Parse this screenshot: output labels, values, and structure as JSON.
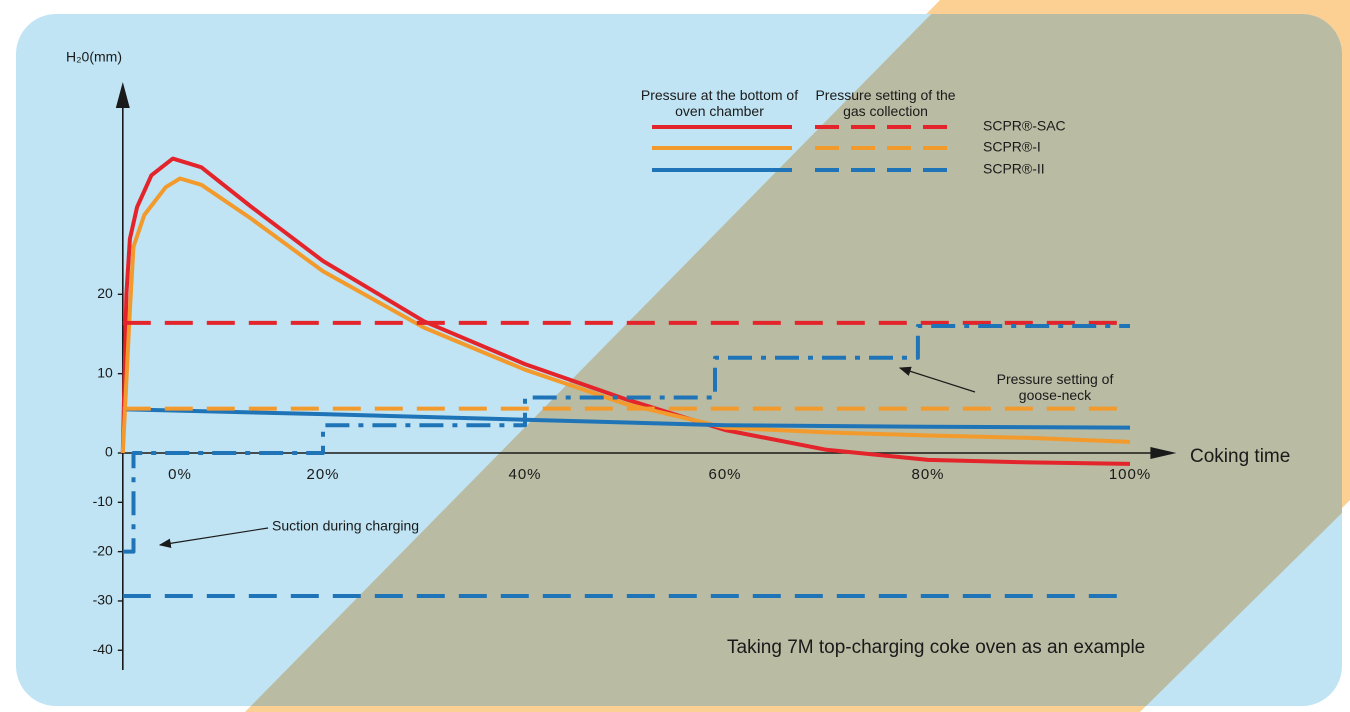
{
  "chart_data": {
    "type": "line",
    "y_label": "H₂0(mm)",
    "x_label": "Coking time",
    "xlim": [
      -8,
      104
    ],
    "xticks": [
      {
        "value": 0,
        "label": "0%"
      },
      {
        "value": 20,
        "label": "20%"
      },
      {
        "value": 40,
        "label": "40%"
      },
      {
        "value": 60,
        "label": "60%"
      },
      {
        "value": 80,
        "label": "80%"
      },
      {
        "value": 100,
        "label": "100%"
      }
    ],
    "ylim": [
      -44,
      46
    ],
    "yticks": [
      -40,
      -30,
      -20,
      -10,
      0,
      10,
      20
    ],
    "legend": {
      "columns": [
        "Pressure at the bottom of oven chamber",
        "Pressure setting of the gas collection"
      ],
      "rows": [
        "SCPR®-SAC",
        "SCPR®-I",
        "SCPR®-II"
      ]
    },
    "series": [
      {
        "color": "#e3242b",
        "style": "solid",
        "x": [
          -8,
          -7.5,
          -7,
          -6,
          -4,
          -1,
          3,
          10,
          20,
          30,
          40,
          50,
          60,
          70,
          80,
          90,
          100
        ],
        "values": [
          0,
          20,
          27,
          31,
          35,
          37.1,
          36,
          31,
          24.2,
          16.6,
          11.2,
          6.8,
          2.9,
          0.4,
          -1.4,
          -1.9,
          -2.2
        ]
      },
      {
        "color": "#f39a2c",
        "style": "solid",
        "x": [
          -8,
          -7,
          -6.5,
          -5,
          -2,
          0,
          3,
          10,
          20,
          30,
          40,
          50,
          60,
          70,
          80,
          90,
          100
        ],
        "values": [
          0,
          18,
          26,
          30,
          33.5,
          34.6,
          33.8,
          29.5,
          22.9,
          15.8,
          10.5,
          6.2,
          3.2,
          2.6,
          2.2,
          1.9,
          1.4
        ]
      },
      {
        "color": "#1f74b7",
        "style": "solid",
        "x": [
          -7.5,
          20,
          40,
          60,
          80,
          100
        ],
        "values": [
          5.5,
          4.9,
          4.2,
          3.5,
          3.3,
          3.2
        ]
      },
      {
        "color": "#e3242b",
        "style": "dashed",
        "x": [
          -8,
          100
        ],
        "values": [
          16.4,
          16.4
        ]
      },
      {
        "color": "#f39a2c",
        "style": "dashed",
        "x": [
          -8,
          100
        ],
        "values": [
          5.6,
          5.6
        ]
      },
      {
        "color": "#1f74b7",
        "style": "dashed",
        "x": [
          -8,
          100
        ],
        "values": [
          -29,
          -29
        ]
      },
      {
        "color": "#1f74b7",
        "style": "dashdot",
        "x": [
          -8,
          -6.5,
          -6.5,
          20,
          20,
          40,
          40,
          59,
          59,
          79,
          79,
          100
        ],
        "values": [
          -20,
          -20,
          0,
          0,
          3.5,
          3.5,
          7,
          7,
          12,
          12,
          16,
          16
        ]
      }
    ],
    "annotations": [
      "Pressure setting of goose-neck",
      "Suction during charging",
      "Taking 7M top-charging coke oven as an example"
    ]
  }
}
